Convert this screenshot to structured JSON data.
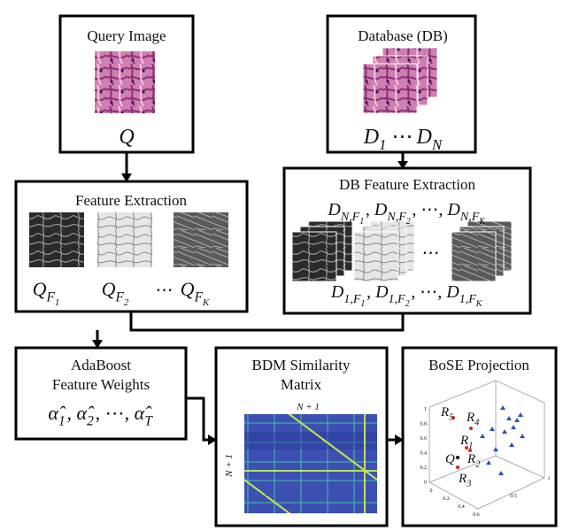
{
  "query": {
    "title": "Query Image",
    "symbol": "Q"
  },
  "database": {
    "title": "Database (DB)",
    "first": {
      "base": "D",
      "sub": "1"
    },
    "dots": "⋯",
    "last": {
      "base": "D",
      "sub": "N"
    }
  },
  "feature_extraction": {
    "title": "Feature Extraction",
    "labels": [
      {
        "base": "Q",
        "sub": "F",
        "subsub": "1"
      },
      {
        "base": "Q",
        "sub": "F",
        "subsub": "2"
      },
      {
        "base": "Q",
        "sub": "F",
        "subsub": "K"
      }
    ],
    "dots": "⋯"
  },
  "db_feature_extraction": {
    "title": "DB Feature Extraction",
    "top_row": [
      {
        "base": "D",
        "sub": "N,F",
        "subsub": "1"
      },
      {
        "base": "D",
        "sub": "N,F",
        "subsub": "2"
      },
      {
        "base": "D",
        "sub": "N,F",
        "subsub": "K"
      }
    ],
    "bottom_row": [
      {
        "base": "D",
        "sub": "1,F",
        "subsub": "1"
      },
      {
        "base": "D",
        "sub": "1,F",
        "subsub": "2"
      },
      {
        "base": "D",
        "sub": "1,F",
        "subsub": "K"
      }
    ],
    "separator": ",",
    "dots": "⋯"
  },
  "adaboost": {
    "title_lines": [
      "AdaBoost",
      "Feature Weights"
    ],
    "weights": [
      {
        "base": "α̂",
        "sub": "1"
      },
      {
        "base": "α̂",
        "sub": "2"
      },
      {
        "base": "α̂",
        "sub": "T"
      }
    ],
    "separator": ",",
    "dots": "⋯"
  },
  "bdm": {
    "title_lines": [
      "BDM Similarity",
      "Matrix"
    ],
    "axis_label": "N + 1"
  },
  "bose": {
    "title": "BoSE Projection",
    "points": [
      {
        "base": "R",
        "sub": "5"
      },
      {
        "base": "R",
        "sub": "4"
      },
      {
        "base": "R",
        "sub": "1"
      },
      {
        "base": "Q"
      },
      {
        "base": "R",
        "sub": "2"
      },
      {
        "base": "R",
        "sub": "3"
      }
    ],
    "y_ticks": [
      "1",
      "0.8",
      "0.6",
      "0.4",
      "0.2",
      "0"
    ],
    "x_ticks": [
      "0",
      "0.2",
      "0.4",
      "0.6"
    ],
    "z_ticks": [
      "0.5",
      "1"
    ]
  }
}
